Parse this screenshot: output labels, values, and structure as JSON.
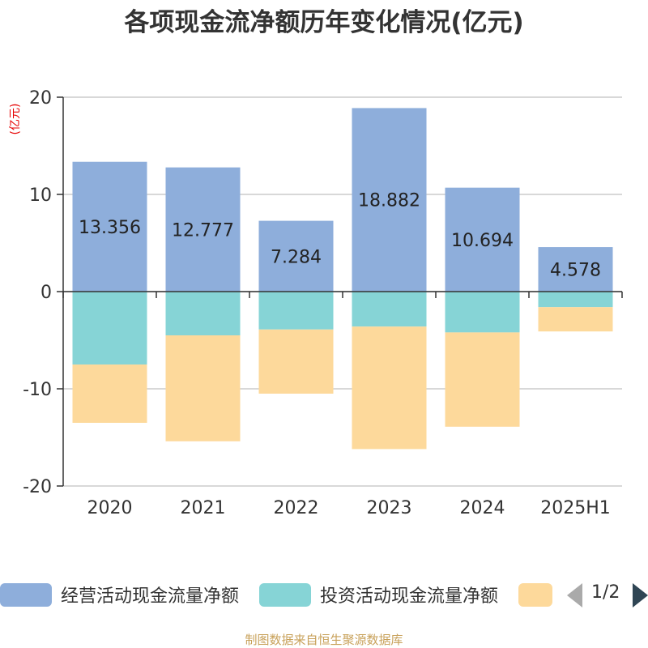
{
  "title": "各项现金流净额历年变化情况(亿元)",
  "footer": "制图数据来自恒生聚源数据库",
  "pager": {
    "text": "1/2"
  },
  "chart_data": {
    "type": "bar",
    "stacked": true,
    "unit_label": "(亿元)",
    "categories": [
      "2020",
      "2021",
      "2022",
      "2023",
      "2024",
      "2025H1"
    ],
    "ylim": [
      -20,
      20
    ],
    "yticks": [
      20,
      10,
      0,
      -10,
      -20
    ],
    "grid": true,
    "legend_position": "bottom",
    "series": [
      {
        "name": "经营活动现金流量净额",
        "color": "#8eaedb",
        "values": [
          13.356,
          12.777,
          7.284,
          18.882,
          10.694,
          4.578
        ],
        "labels": [
          "13.356",
          "12.777",
          "7.284",
          "18.882",
          "10.694",
          "4.578"
        ]
      },
      {
        "name": "投资活动现金流量净额",
        "color": "#86d4d6",
        "values": [
          -7.5,
          -4.5,
          -3.9,
          -3.6,
          -4.2,
          -1.6
        ]
      },
      {
        "name": "",
        "color": "#fdd99b",
        "values": [
          -6.0,
          -10.9,
          -6.6,
          -12.6,
          -9.7,
          -2.5
        ]
      }
    ]
  }
}
